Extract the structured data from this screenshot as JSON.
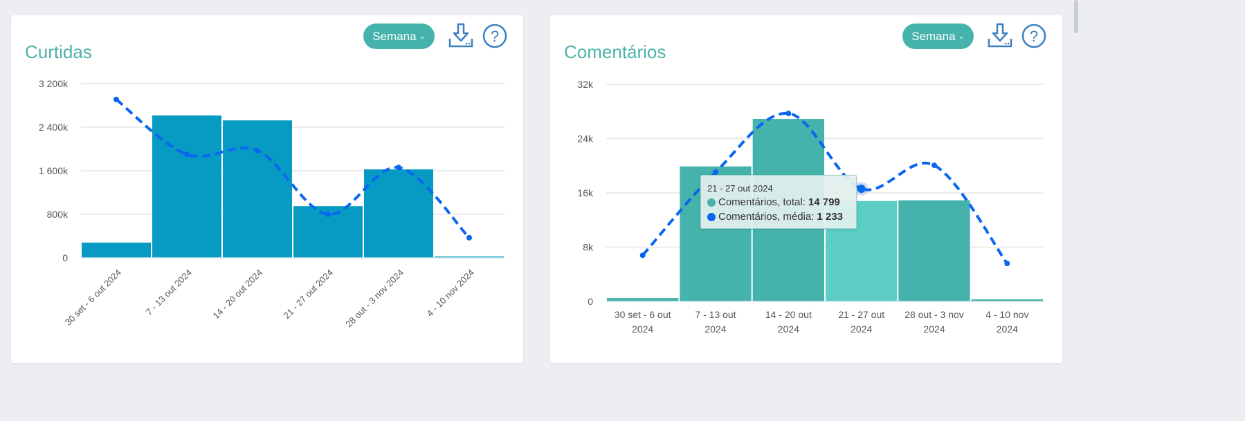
{
  "colors": {
    "accent": "#45b3ab",
    "title": "#4db3a7",
    "icon": "#3d7fc0",
    "line": "#0a66f0"
  },
  "cards": [
    {
      "title": "Curtidas",
      "period_label": "Semana",
      "download_icon": "download-icon",
      "help_icon": "help-icon"
    },
    {
      "title": "Comentários",
      "period_label": "Semana",
      "download_icon": "download-icon",
      "help_icon": "help-icon"
    }
  ],
  "tooltip": {
    "header": "21 - 27 out 2024",
    "rows": [
      {
        "label": "Comentários, total:",
        "value": "14 799",
        "color": "#45b3ab"
      },
      {
        "label": "Comentários, média:",
        "value": "1 233",
        "color": "#0a66f0"
      }
    ]
  },
  "chart_data": [
    {
      "type": "bar",
      "title": "Curtidas",
      "categories": [
        "30 set - 6 out 2024",
        "7 - 13 out 2024",
        "14 - 20 out 2024",
        "21 - 27 out 2024",
        "28 out - 3 nov 2024",
        "4 - 10 nov 2024"
      ],
      "ylim": [
        0,
        3200000
      ],
      "yticks": [
        {
          "v": 0,
          "label": "0"
        },
        {
          "v": 800000,
          "label": "800k"
        },
        {
          "v": 1600000,
          "label": "1 600k"
        },
        {
          "v": 2400000,
          "label": "2 400k"
        },
        {
          "v": 3200000,
          "label": "3 200k"
        }
      ],
      "grid": true,
      "xlabel_rotation": "rotated",
      "bar_color": "#079bc4",
      "series": [
        {
          "type": "bar",
          "values": [
            280000,
            2615000,
            2525000,
            950000,
            1625000,
            25000
          ]
        },
        {
          "type": "line",
          "style": "dashed-smooth",
          "color": "#0a66f0",
          "values": [
            2910000,
            1900000,
            1970000,
            800000,
            1660000,
            370000
          ]
        }
      ]
    },
    {
      "type": "bar",
      "title": "Comentários",
      "categories": [
        "30 set - 6 out 2024",
        "7 - 13 out 2024",
        "14 - 20 out 2024",
        "21 - 27 out 2024",
        "28 out - 3 nov 2024",
        "4 - 10 nov 2024"
      ],
      "ylim": [
        0,
        32000
      ],
      "y2lim": [
        0,
        2376
      ],
      "yticks": [
        {
          "v": 0,
          "label": "0"
        },
        {
          "v": 8000,
          "label": "8k"
        },
        {
          "v": 16000,
          "label": "16k"
        },
        {
          "v": 24000,
          "label": "24k"
        },
        {
          "v": 32000,
          "label": "32k"
        }
      ],
      "grid": true,
      "xlabel_rotation": "wrapped",
      "bar_color": "#45b3ab",
      "highlight_index": 3,
      "highlight_color": "#5ccdc4",
      "series": [
        {
          "type": "bar",
          "name": "Comentários, total",
          "values": [
            500,
            19900,
            26900,
            14799,
            14900,
            300
          ]
        },
        {
          "type": "line",
          "name": "Comentários, média",
          "axis": "y2",
          "style": "dashed-smooth",
          "color": "#0a66f0",
          "values": [
            505,
            1415,
            2058,
            1233,
            1490,
            415
          ]
        }
      ]
    }
  ]
}
